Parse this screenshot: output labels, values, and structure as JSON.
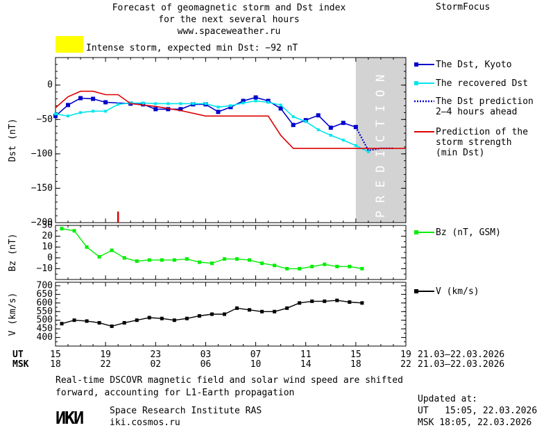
{
  "header": {
    "title_lines": [
      "Forecast of geomagnetic storm and Dst index",
      "for the next several hours",
      "www.spaceweather.ru"
    ],
    "brand": "StormFocus"
  },
  "storm_indicator": {
    "text": "Intense storm, expected min Dst: −92 nT",
    "color": "#ffff00"
  },
  "prediction_band_label": "PREDICTION",
  "legend": {
    "dst_kyoto": "The Dst, Kyoto",
    "recovered_dst": "The recovered Dst",
    "dst_prediction": [
      "The Dst prediction",
      "2–4 hours ahead"
    ],
    "storm_strength": [
      "Prediction of the",
      "storm strength",
      "(min Dst)"
    ],
    "bz": "Bz (nT, GSM)",
    "v": "V (km/s)"
  },
  "time_axis": {
    "ut_label": "UT",
    "msk_label": "MSK",
    "ut_ticks": [
      "15",
      "19",
      "23",
      "03",
      "07",
      "11",
      "15",
      "19"
    ],
    "msk_ticks": [
      "18",
      "22",
      "02",
      "06",
      "10",
      "14",
      "18",
      "22"
    ],
    "ut_range": "21.03–22.03.2026",
    "msk_range": "21.03–22.03.2026"
  },
  "footer": {
    "note": [
      "Real-time DSCOVR magnetic field and solar wind speed are shifted",
      "forward, accounting for L1-Earth propagation"
    ],
    "logo_text": "ИКИ",
    "institute": [
      "Space Research Institute RAS",
      "iki.cosmos.ru"
    ],
    "updated_label": "Updated at:",
    "updated_ut": "UT   15:05, 22.03.2026",
    "updated_msk": "MSK 18:05, 22.03.2026"
  },
  "colors": {
    "dst_kyoto": "#0000cc",
    "recovered_dst": "#00e5ee",
    "dst_prediction": "#0000cc",
    "storm_strength": "#dd0000",
    "bz": "#00ee00",
    "v": "#000000",
    "prediction_band": "#d3d3d3"
  },
  "chart_data": [
    {
      "type": "line",
      "ylabel": "Dst (nT)",
      "xlabel": "UT / MSK hours",
      "x_unit": "hours since 15 UT 21.03.2026",
      "xlim": [
        0,
        28
      ],
      "ylim": [
        -200,
        40
      ],
      "yticks": [
        0,
        -50,
        -100,
        -150,
        -200
      ],
      "prediction_band_x": [
        24,
        28
      ],
      "storm_marker_x": 5,
      "series": [
        {
          "name": "The Dst, Kyoto",
          "x": [
            0,
            1,
            2,
            3,
            4,
            6,
            7,
            8,
            9,
            10,
            11,
            12,
            13,
            14,
            15,
            16,
            17,
            18,
            19,
            20,
            21,
            22,
            23,
            24
          ],
          "y": [
            -45,
            -29,
            -19,
            -20,
            -25,
            -27,
            -28,
            -35,
            -35,
            -35,
            -28,
            -28,
            -39,
            -32,
            -23,
            -18,
            -23,
            -34,
            -58,
            -51,
            -44,
            -62,
            -55,
            -61
          ]
        },
        {
          "name": "The recovered Dst",
          "x": [
            0,
            1,
            2,
            3,
            4,
            5,
            6,
            7,
            8,
            9,
            10,
            11,
            12,
            13,
            14,
            15,
            16,
            17,
            18,
            19,
            20,
            21,
            22,
            23,
            24,
            25
          ],
          "y": [
            -42,
            -45,
            -40,
            -38,
            -38,
            -28,
            -26,
            -26,
            -27,
            -27,
            -27,
            -27,
            -27,
            -32,
            -30,
            -26,
            -23,
            -25,
            -29,
            -46,
            -53,
            -65,
            -73,
            -80,
            -88,
            -97
          ]
        },
        {
          "name": "The Dst prediction 2–4 hours ahead",
          "x": [
            24,
            25,
            26,
            27
          ],
          "y": [
            -61,
            -95,
            -92,
            -92
          ]
        },
        {
          "name": "Prediction of the storm strength (min Dst)",
          "x": [
            0,
            1,
            2,
            3,
            4,
            5,
            6,
            8,
            10,
            12,
            14,
            16,
            17,
            18,
            19,
            20,
            28
          ],
          "y": [
            -33,
            -17,
            -9,
            -9,
            -14,
            -14,
            -27,
            -31,
            -37,
            -45,
            -45,
            -45,
            -45,
            -73,
            -92,
            -92,
            -92
          ]
        }
      ]
    },
    {
      "type": "line",
      "ylabel": "Bz (nT)",
      "xlim": [
        0,
        28
      ],
      "ylim": [
        -20,
        30
      ],
      "yticks": [
        30,
        20,
        10,
        0,
        -10
      ],
      "series": [
        {
          "name": "Bz (nT, GSM)",
          "x": [
            0.5,
            1.5,
            2.5,
            3.5,
            4.5,
            5.5,
            6.5,
            7.5,
            8.5,
            9.5,
            10.5,
            11.5,
            12.5,
            13.5,
            14.5,
            15.5,
            16.5,
            17.5,
            18.5,
            19.5,
            20.5,
            21.5,
            22.5,
            23.5,
            24.5
          ],
          "y": [
            27,
            25,
            10,
            1,
            7,
            0,
            -3,
            -2,
            -2,
            -2,
            -1,
            -4,
            -5,
            -1,
            -1,
            -2,
            -5,
            -7,
            -10,
            -10,
            -8,
            -6,
            -8,
            -8,
            -10
          ]
        }
      ]
    },
    {
      "type": "line",
      "ylabel": "V (km/s)",
      "xlim": [
        0,
        28
      ],
      "ylim": [
        350,
        720
      ],
      "yticks": [
        700,
        650,
        600,
        550,
        500,
        450,
        400
      ],
      "series": [
        {
          "name": "V (km/s)",
          "x": [
            0.5,
            1.5,
            2.5,
            3.5,
            4.5,
            5.5,
            6.5,
            7.5,
            8.5,
            9.5,
            10.5,
            11.5,
            12.5,
            13.5,
            14.5,
            15.5,
            16.5,
            17.5,
            18.5,
            19.5,
            20.5,
            21.5,
            22.5,
            23.5,
            24.5
          ],
          "y": [
            480,
            500,
            495,
            485,
            465,
            485,
            500,
            515,
            510,
            500,
            510,
            525,
            535,
            535,
            570,
            560,
            550,
            550,
            570,
            600,
            610,
            610,
            615,
            605,
            600
          ]
        }
      ]
    }
  ]
}
